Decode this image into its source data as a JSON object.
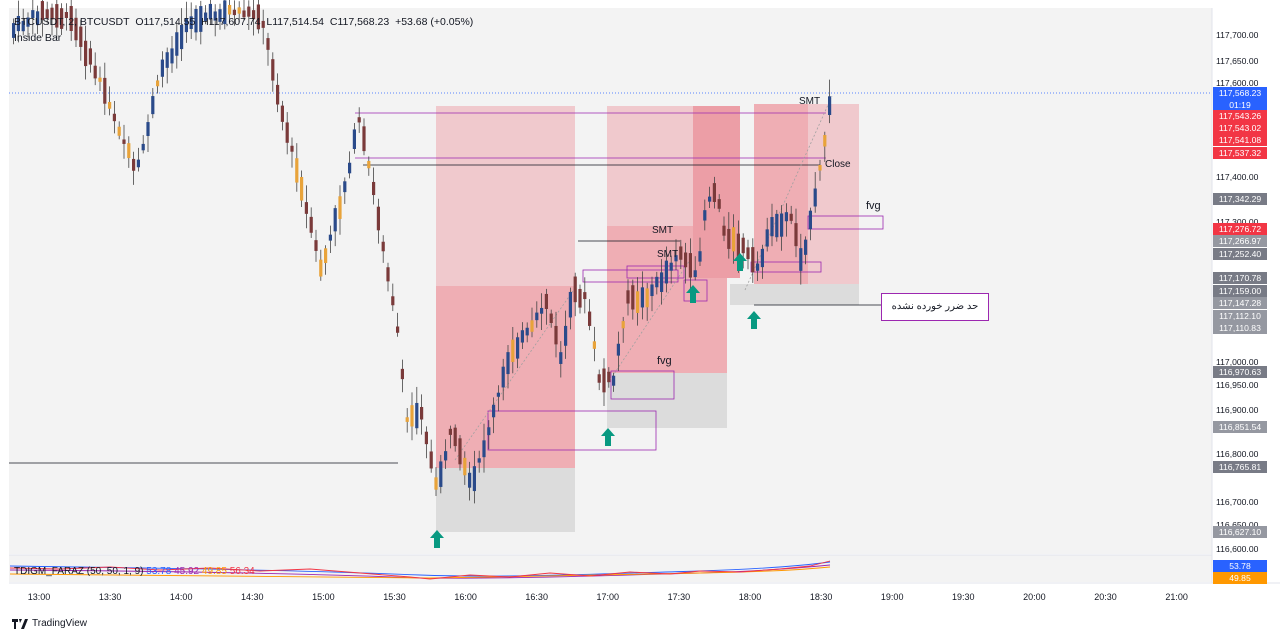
{
  "header": {
    "symbol": "BTCUSDT, 2, BTCUSDT",
    "o_label": "O",
    "o": "117,514.55",
    "h_label": "H",
    "h": "117,607.74",
    "l_label": "L",
    "l": "117,514.54",
    "c_label": "C",
    "c": "117,568.23",
    "change": "+53.68 (+0.05%)",
    "indicator": "Inside Bar"
  },
  "annotations": {
    "smt_1": "SMT",
    "smt_2": "SMT",
    "smt_3": "SMT",
    "close": "Close",
    "fvg_1": "fvg",
    "fvg_2": "fvg",
    "stop_note": "حد ضرر خورده نشده"
  },
  "price_tags": [
    {
      "label": "117,568.23",
      "color": "#2962ff"
    },
    {
      "label": "01:19",
      "color": "#2962ff"
    },
    {
      "label": "117,543.26",
      "color": "#f23645"
    },
    {
      "label": "117,543.02",
      "color": "#f23645"
    },
    {
      "label": "117,541.08",
      "color": "#f23645"
    },
    {
      "label": "117,537.32",
      "color": "#f23645"
    },
    {
      "label": "117,342.29",
      "color": "#787b86"
    },
    {
      "label": "117,276.72",
      "color": "#f23645"
    },
    {
      "label": "117,266.97",
      "color": "#9598a1"
    },
    {
      "label": "117,252.40",
      "color": "#787b86"
    },
    {
      "label": "117,170.78",
      "color": "#787b86"
    },
    {
      "label": "117,159.00",
      "color": "#787b86"
    },
    {
      "label": "117,147.28",
      "color": "#9598a1"
    },
    {
      "label": "117,112.10",
      "color": "#9598a1"
    },
    {
      "label": "117,110.83",
      "color": "#9598a1"
    },
    {
      "label": "116,970.63",
      "color": "#787b86"
    },
    {
      "label": "116,851.54",
      "color": "#9598a1"
    },
    {
      "label": "116,765.81",
      "color": "#787b86"
    },
    {
      "label": "116,627.10",
      "color": "#9598a1"
    }
  ],
  "y_axis": [
    "117,700.00",
    "117,650.00",
    "117,600.00",
    "117,400.00",
    "117,300.00",
    "117,000.00",
    "116,950.00",
    "116,900.00",
    "116,800.00",
    "116,700.00",
    "116,650.00",
    "116,600.00"
  ],
  "x_axis": [
    "13:00",
    "13:30",
    "14:00",
    "14:30",
    "15:00",
    "15:30",
    "16:00",
    "16:30",
    "17:00",
    "17:30",
    "18:00",
    "18:30",
    "19:00",
    "19:30",
    "20:00",
    "20:30",
    "21:00"
  ],
  "indicator_panel": {
    "name": "TDIGM_FARAZ (50, 50, 1, 9)",
    "v1": "53.78",
    "v1_color": "#2962ff",
    "v2": "45.92",
    "v2_color": "#9c27b0",
    "v3": "49.85",
    "v3_color": "#ff9800",
    "v4": "56.34",
    "v4_color": "#f23645",
    "tag_1": "53.78",
    "tag_2": "49.85"
  },
  "brand": "TradingView",
  "chart_data": {
    "type": "candlestick",
    "title": "BTCUSDT, 2",
    "ylim": [
      116600,
      117750
    ],
    "xlabel": "",
    "ylabel": "",
    "last_price": 117568.23
  }
}
